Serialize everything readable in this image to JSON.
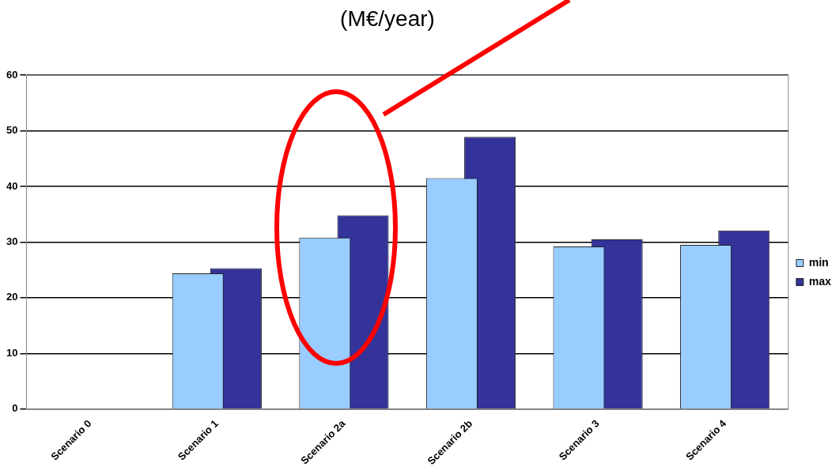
{
  "chart_data": {
    "type": "bar",
    "title": "(M€/year)",
    "categories": [
      "Scenario 0",
      "Scenario 1",
      "Scenario 2a",
      "Scenario 2b",
      "Scenario 3",
      "Scenario 4"
    ],
    "series": [
      {
        "name": "max",
        "color": "#333399",
        "values": [
          null,
          25.3,
          34.8,
          48.9,
          30.5,
          32.1
        ]
      },
      {
        "name": "min",
        "color": "#99ccff",
        "values": [
          null,
          24.4,
          30.8,
          41.5,
          29.2,
          29.5
        ]
      }
    ],
    "ylim": [
      0,
      60
    ],
    "yticks": [
      0,
      10,
      20,
      30,
      40,
      50,
      60
    ],
    "grid": "y",
    "legend": "right"
  }
}
